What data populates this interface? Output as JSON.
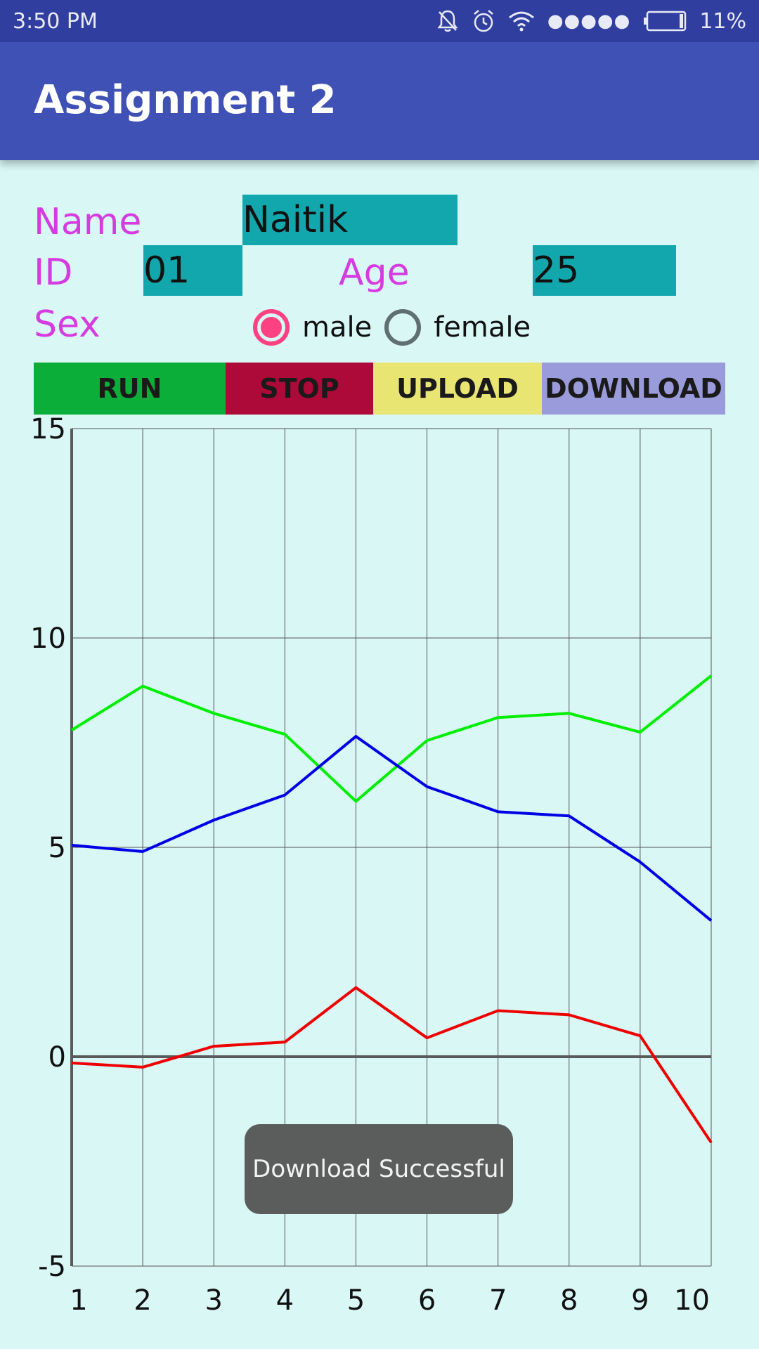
{
  "status_bar": {
    "time": "3:50 PM",
    "battery": "11%",
    "icons": [
      "bell-off-icon",
      "alarm-icon",
      "wifi-icon",
      "signal-dots-icon",
      "battery-icon"
    ]
  },
  "app_bar": {
    "title": "Assignment 2"
  },
  "form": {
    "name_label": "Name",
    "name_value": "Naitik",
    "id_label": "ID",
    "id_value": "01",
    "age_label": "Age",
    "age_value": "25",
    "sex_label": "Sex",
    "sex_options": [
      {
        "label": "male",
        "checked": true
      },
      {
        "label": "female",
        "checked": false
      }
    ]
  },
  "buttons": {
    "run": {
      "label": "RUN",
      "color": "#0aae38"
    },
    "stop": {
      "label": "STOP",
      "color": "#ad0939"
    },
    "upload": {
      "label": "UPLOAD",
      "color": "#e9e572"
    },
    "download": {
      "label": "DOWNLOAD",
      "color": "#9a9bdb"
    }
  },
  "chart_data": {
    "type": "line",
    "title": "",
    "xlabel": "",
    "ylabel": "",
    "x": [
      1,
      2,
      3,
      4,
      5,
      6,
      7,
      8,
      9,
      10
    ],
    "x_ticks": [
      "1",
      "2",
      "3",
      "4",
      "5",
      "6",
      "7",
      "8",
      "9",
      "10"
    ],
    "y_ticks": [
      "15",
      "10",
      "5",
      "0",
      "-5"
    ],
    "xlim": [
      1,
      10
    ],
    "ylim": [
      -5,
      15
    ],
    "grid": true,
    "series": [
      {
        "color": "#00ee00",
        "values": [
          7.8,
          8.85,
          8.2,
          7.7,
          6.1,
          7.55,
          8.1,
          8.2,
          7.75,
          9.1
        ]
      },
      {
        "color": "#0000e6",
        "values": [
          5.05,
          4.9,
          5.65,
          6.25,
          7.65,
          6.45,
          5.85,
          5.75,
          4.65,
          3.25
        ]
      },
      {
        "color": "#ee0000",
        "values": [
          -0.15,
          -0.25,
          0.25,
          0.35,
          1.65,
          0.45,
          1.1,
          1.0,
          0.5,
          -2.05
        ]
      }
    ]
  },
  "toast": {
    "message": "Download Successful"
  }
}
